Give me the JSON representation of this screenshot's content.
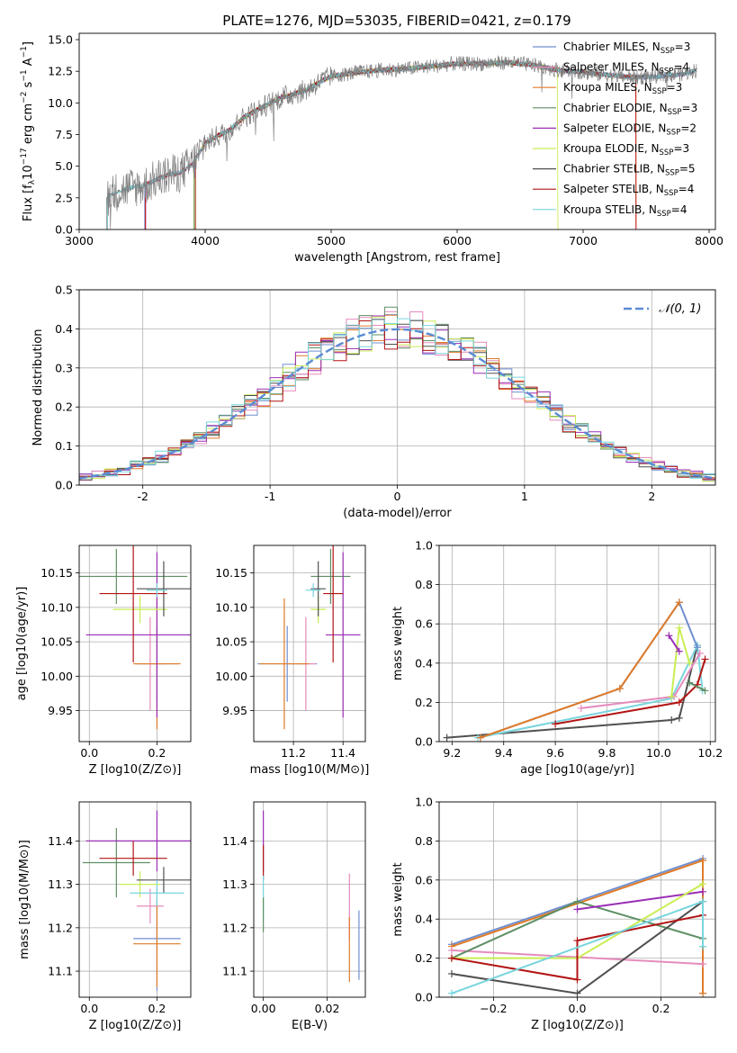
{
  "figure_title": "PLATE=1276, MJD=53035, FIBERID=0421, z=0.179",
  "series_colors": {
    "Chabrier MILES": "#6f8fd0",
    "Salpeter MILES": "#e58bbd",
    "Kroupa MILES": "#e07b28",
    "Chabrier ELODIE": "#5e8f65",
    "Salpeter ELODIE": "#9a2eb6",
    "Kroupa ELODIE": "#c9ee53",
    "Chabrier STELIB": "#505050",
    "Salpeter STELIB": "#b31414",
    "Kroupa STELIB": "#78d5de"
  },
  "models": [
    {
      "name": "Chabrier MILES",
      "nssp": "3"
    },
    {
      "name": "Salpeter MILES",
      "nssp": "4"
    },
    {
      "name": "Kroupa MILES",
      "nssp": "3"
    },
    {
      "name": "Chabrier ELODIE",
      "nssp": "3"
    },
    {
      "name": "Salpeter ELODIE",
      "nssp": "2"
    },
    {
      "name": "Kroupa ELODIE",
      "nssp": "3"
    },
    {
      "name": "Chabrier STELIB",
      "nssp": "5"
    },
    {
      "name": "Salpeter STELIB",
      "nssp": "4"
    },
    {
      "name": "Kroupa STELIB",
      "nssp": "4"
    }
  ],
  "chart_data": [
    {
      "id": "spectrum",
      "type": "line",
      "xlabel": "wavelength [Angstrom, rest frame]",
      "ylabel": "Flux [f_λ10^-17 erg cm^-2 s^-1 A^-1]",
      "xlim": [
        3000,
        8050
      ],
      "ylim": [
        0,
        15.5
      ],
      "xticks": [
        3000,
        4000,
        5000,
        6000,
        7000,
        8000
      ],
      "yticks": [
        0.0,
        2.5,
        5.0,
        7.5,
        10.0,
        12.5,
        15.0
      ],
      "grid": false,
      "legend": "top-right",
      "data_envelope": {
        "x": [
          3220,
          3300,
          3400,
          3500,
          3600,
          3700,
          3800,
          3900,
          4000,
          4100,
          4200,
          4300,
          4400,
          4500,
          4600,
          4700,
          4800,
          4900,
          5000,
          5200,
          5400,
          5600,
          5800,
          6000,
          6200,
          6400,
          6600,
          6800,
          7000,
          7200,
          7400,
          7600,
          7800,
          7900
        ],
        "y": [
          2.6,
          3.0,
          3.3,
          3.4,
          3.9,
          4.3,
          4.5,
          5.2,
          6.8,
          7.4,
          7.9,
          8.8,
          9.4,
          9.9,
          10.4,
          10.7,
          11.0,
          11.6,
          12.1,
          12.4,
          12.6,
          12.7,
          12.9,
          13.1,
          13.1,
          13.2,
          13.0,
          12.6,
          12.4,
          12.2,
          12.0,
          12.1,
          12.3,
          12.6
        ]
      },
      "model_start_wavelengths": {
        "Chabrier MILES": 3520,
        "Salpeter MILES": 3530,
        "Kroupa MILES": 3925,
        "Chabrier ELODIE": 3910,
        "Salpeter ELODIE": 3920,
        "Kroupa ELODIE": 3915,
        "Chabrier STELIB": 3220,
        "Salpeter STELIB": 3525,
        "Kroupa STELIB": 3225
      },
      "model_end_wavelengths": {
        "Kroupa ELODIE": 6800,
        "Kroupa MILES": 7420,
        "Salpeter STELIB": 7420
      }
    },
    {
      "id": "residuals",
      "type": "line",
      "xlabel": "(data-model)/error",
      "ylabel": "Normed distribution",
      "xlim": [
        -2.5,
        2.5
      ],
      "ylim": [
        0,
        0.5
      ],
      "xticks": [
        -2,
        -1,
        0,
        1,
        2
      ],
      "yticks": [
        0.0,
        0.1,
        0.2,
        0.3,
        0.4,
        0.5
      ],
      "grid": true,
      "legend": "top-right",
      "reference_label": "𝒩(0, 1)",
      "reference_color": "#5b8bd4"
    },
    {
      "id": "age-vs-Z",
      "type": "scatter",
      "xlabel": "Z [log10(Z/Z⊙)]",
      "ylabel": "age  [log10(age/yr)]",
      "xlim": [
        -0.03,
        0.3
      ],
      "ylim": [
        9.905,
        10.19
      ],
      "xticks": [
        0.0,
        0.2
      ],
      "xticklabels": [
        "0.0",
        "0.2"
      ],
      "yticks": [
        9.95,
        10.0,
        10.05,
        10.1,
        10.15
      ],
      "yticklabels": [
        "9.95",
        "10.00",
        "10.05",
        "10.10",
        "10.15"
      ],
      "grid": true,
      "points": [
        {
          "series": "Chabrier MILES",
          "x": 0.2,
          "y": 10.018,
          "xerr": 0.06,
          "yerr": 0.055
        },
        {
          "series": "Salpeter MILES",
          "x": 0.18,
          "y": 10.018,
          "xerr": 0.04,
          "yerr": 0.068
        },
        {
          "series": "Kroupa MILES",
          "x": 0.2,
          "y": 10.018,
          "xerr": 0.07,
          "yerr": 0.095
        },
        {
          "series": "Chabrier ELODIE",
          "x": 0.08,
          "y": 10.145,
          "xerr": 0.21,
          "yerr": 0.04
        },
        {
          "series": "Salpeter ELODIE",
          "x": 0.2,
          "y": 10.06,
          "xerr": 0.21,
          "yerr": 0.12
        },
        {
          "series": "Kroupa ELODIE",
          "x": 0.15,
          "y": 10.097,
          "xerr": 0.08,
          "yerr": 0.02
        },
        {
          "series": "Chabrier STELIB",
          "x": 0.22,
          "y": 10.127,
          "xerr": 0.08,
          "yerr": 0.04
        },
        {
          "series": "Salpeter STELIB",
          "x": 0.13,
          "y": 10.12,
          "xerr": 0.1,
          "yerr": 0.1
        },
        {
          "series": "Kroupa STELIB",
          "x": 0.2,
          "y": 10.125,
          "xerr": 0.03,
          "yerr": 0.01
        }
      ]
    },
    {
      "id": "age-vs-mass",
      "type": "scatter",
      "xlabel": "mass [log10(M/M⊙)]",
      "ylabel": "",
      "xlim": [
        11.04,
        11.49
      ],
      "ylim": [
        9.905,
        10.19
      ],
      "xticks": [
        11.2,
        11.4
      ],
      "xticklabels": [
        "11.2",
        "11.4"
      ],
      "yticks": [
        9.95,
        10.0,
        10.05,
        10.1,
        10.15
      ],
      "yticklabels": [
        "9.95",
        "10.00",
        "10.05",
        "10.10",
        "10.15"
      ],
      "grid": true,
      "points": [
        {
          "series": "Chabrier MILES",
          "x": 11.175,
          "y": 10.018,
          "xerr": 0.12,
          "yerr": 0.055
        },
        {
          "series": "Salpeter MILES",
          "x": 11.25,
          "y": 10.018,
          "xerr": 0.04,
          "yerr": 0.068
        },
        {
          "series": "Kroupa MILES",
          "x": 11.163,
          "y": 10.018,
          "xerr": 0.1,
          "yerr": 0.095
        },
        {
          "series": "Chabrier ELODIE",
          "x": 11.35,
          "y": 10.145,
          "xerr": 0.08,
          "yerr": 0.04
        },
        {
          "series": "Salpeter ELODIE",
          "x": 11.4,
          "y": 10.06,
          "xerr": 0.07,
          "yerr": 0.12
        },
        {
          "series": "Kroupa ELODIE",
          "x": 11.3,
          "y": 10.097,
          "xerr": 0.03,
          "yerr": 0.02
        },
        {
          "series": "Chabrier STELIB",
          "x": 11.3,
          "y": 10.127,
          "xerr": 0.03,
          "yerr": 0.04
        },
        {
          "series": "Salpeter STELIB",
          "x": 11.36,
          "y": 10.12,
          "xerr": 0.04,
          "yerr": 0.1
        },
        {
          "series": "Kroupa STELIB",
          "x": 11.28,
          "y": 10.125,
          "xerr": 0.03,
          "yerr": 0.01
        }
      ]
    },
    {
      "id": "massweight-vs-age",
      "type": "line",
      "xlabel": "age  [log10(age/yr)]",
      "ylabel": "mass weight",
      "xlim": [
        9.15,
        10.22
      ],
      "ylim": [
        0,
        1.0
      ],
      "xticks": [
        9.2,
        9.4,
        9.6,
        9.8,
        10.0,
        10.2
      ],
      "xticklabels": [
        "9.2",
        "9.4",
        "9.6",
        "9.8",
        "10.0",
        "10.2"
      ],
      "yticks": [
        0.0,
        0.2,
        0.4,
        0.6,
        0.8,
        1.0
      ],
      "yticklabels": [
        "0.0",
        "0.2",
        "0.4",
        "0.6",
        "0.8",
        "1.0"
      ],
      "grid": true,
      "series": [
        {
          "name": "Chabrier STELIB",
          "x": [
            9.18,
            10.05,
            10.08,
            10.15
          ],
          "y": [
            0.02,
            0.11,
            0.12,
            0.49
          ]
        },
        {
          "name": "Kroupa STELIB",
          "x": [
            9.3,
            10.05,
            10.15,
            10.17
          ],
          "y": [
            0.02,
            0.22,
            0.49,
            0.26
          ]
        },
        {
          "name": "Salpeter STELIB",
          "x": [
            9.6,
            10.08,
            10.15,
            10.18
          ],
          "y": [
            0.09,
            0.2,
            0.29,
            0.42
          ]
        },
        {
          "name": "Salpeter MILES",
          "x": [
            9.7,
            10.06,
            10.16
          ],
          "y": [
            0.17,
            0.23,
            0.45
          ]
        },
        {
          "name": "Kroupa ELODIE",
          "x": [
            10.05,
            10.08,
            10.12
          ],
          "y": [
            0.23,
            0.58,
            0.4
          ]
        },
        {
          "name": "Chabrier ELODIE",
          "x": [
            10.12,
            10.18
          ],
          "y": [
            0.3,
            0.26
          ]
        },
        {
          "name": "Salpeter ELODIE",
          "x": [
            10.04,
            10.08
          ],
          "y": [
            0.54,
            0.46
          ]
        },
        {
          "name": "Chabrier MILES",
          "x": [
            9.31,
            9.85,
            10.08,
            10.15
          ],
          "y": [
            0.02,
            0.27,
            0.71,
            0.48
          ]
        },
        {
          "name": "Kroupa MILES",
          "x": [
            9.31,
            9.85,
            10.08
          ],
          "y": [
            0.02,
            0.27,
            0.71
          ]
        }
      ]
    },
    {
      "id": "mass-vs-Z",
      "type": "scatter",
      "xlabel": "Z [log10(Z/Z⊙)]",
      "ylabel": "mass [log10(M/M⊙)]",
      "xlim": [
        -0.03,
        0.3
      ],
      "ylim": [
        11.04,
        11.49
      ],
      "xticks": [
        0.0,
        0.2
      ],
      "xticklabels": [
        "0.0",
        "0.2"
      ],
      "yticks": [
        11.1,
        11.2,
        11.3,
        11.4
      ],
      "yticklabels": [
        "11.1",
        "11.2",
        "11.3",
        "11.4"
      ],
      "grid": true,
      "points": [
        {
          "series": "Chabrier MILES",
          "x": 0.2,
          "y": 11.175,
          "xerr": 0.07,
          "yerr": 0.12
        },
        {
          "series": "Salpeter MILES",
          "x": 0.18,
          "y": 11.25,
          "xerr": 0.04,
          "yerr": 0.04
        },
        {
          "series": "Kroupa MILES",
          "x": 0.2,
          "y": 11.163,
          "xerr": 0.07,
          "yerr": 0.1
        },
        {
          "series": "Chabrier ELODIE",
          "x": 0.08,
          "y": 11.35,
          "xerr": 0.1,
          "yerr": 0.08
        },
        {
          "series": "Salpeter ELODIE",
          "x": 0.2,
          "y": 11.4,
          "xerr": 0.21,
          "yerr": 0.07
        },
        {
          "series": "Kroupa ELODIE",
          "x": 0.15,
          "y": 11.3,
          "xerr": 0.06,
          "yerr": 0.03
        },
        {
          "series": "Chabrier STELIB",
          "x": 0.22,
          "y": 11.31,
          "xerr": 0.08,
          "yerr": 0.03
        },
        {
          "series": "Salpeter STELIB",
          "x": 0.13,
          "y": 11.36,
          "xerr": 0.1,
          "yerr": 0.04
        },
        {
          "series": "Kroupa STELIB",
          "x": 0.2,
          "y": 11.28,
          "xerr": 0.08,
          "yerr": 0.03
        }
      ]
    },
    {
      "id": "mass-vs-ebv",
      "type": "scatter",
      "xlabel": "E(B-V)",
      "ylabel": "",
      "xlim": [
        -0.003,
        0.032
      ],
      "ylim": [
        11.04,
        11.49
      ],
      "xticks": [
        0.0,
        0.02
      ],
      "xticklabels": [
        "0.00",
        "0.02"
      ],
      "yticks": [
        11.1,
        11.2,
        11.3,
        11.4
      ],
      "yticklabels": [
        "11.1",
        "11.2",
        "11.3",
        "11.4"
      ],
      "grid": true,
      "points": [
        {
          "series": "Chabrier MILES",
          "x": 0.03,
          "y": 11.16,
          "xerr": 0,
          "yerr": 0.08
        },
        {
          "series": "Salpeter MILES",
          "x": 0.027,
          "y": 11.25,
          "xerr": 0,
          "yerr": 0.075
        },
        {
          "series": "Kroupa MILES",
          "x": 0.027,
          "y": 11.15,
          "xerr": 0,
          "yerr": 0.075
        },
        {
          "series": "Salpeter ELODIE",
          "x": 0.0,
          "y": 11.4,
          "xerr": 0,
          "yerr": 0.07
        },
        {
          "series": "Salpeter STELIB",
          "x": 0.0,
          "y": 11.35,
          "xerr": 0,
          "yerr": 0.04
        },
        {
          "series": "Kroupa STELIB",
          "x": 0.0,
          "y": 11.27,
          "xerr": 0,
          "yerr": 0.05
        },
        {
          "series": "Chabrier ELODIE",
          "x": 0.0,
          "y": 11.23,
          "xerr": 0,
          "yerr": 0.04
        }
      ]
    },
    {
      "id": "massweight-vs-Z",
      "type": "line",
      "xlabel": "Z [log10(Z/Z⊙)]",
      "ylabel": "mass weight",
      "xlim": [
        -0.33,
        0.33
      ],
      "ylim": [
        0,
        1.0
      ],
      "xticks": [
        -0.2,
        0.0,
        0.2
      ],
      "xticklabels": [
        "−0.2",
        "0.0",
        "0.2"
      ],
      "yticks": [
        0.0,
        0.2,
        0.4,
        0.6,
        0.8,
        1.0
      ],
      "yticklabels": [
        "0.0",
        "0.2",
        "0.4",
        "0.6",
        "0.8",
        "1.0"
      ],
      "grid": true,
      "series": [
        {
          "name": "Chabrier MILES",
          "x": [
            -0.3,
            0.3,
            0.3
          ],
          "y": [
            0.27,
            0.71,
            0.02
          ]
        },
        {
          "name": "Kroupa MILES",
          "x": [
            -0.3,
            0.3,
            0.3
          ],
          "y": [
            0.26,
            0.7,
            0.02
          ]
        },
        {
          "name": "Salpeter MILES",
          "x": [
            -0.3,
            0.3
          ],
          "y": [
            0.24,
            0.17
          ]
        },
        {
          "name": "Chabrier ELODIE",
          "x": [
            -0.3,
            0.0,
            0.3
          ],
          "y": [
            0.2,
            0.49,
            0.3
          ]
        },
        {
          "name": "Salpeter ELODIE",
          "x": [
            0.0,
            0.3
          ],
          "y": [
            0.45,
            0.54
          ]
        },
        {
          "name": "Kroupa ELODIE",
          "x": [
            -0.3,
            0.0,
            0.3
          ],
          "y": [
            0.2,
            0.2,
            0.58
          ]
        },
        {
          "name": "Chabrier STELIB",
          "x": [
            -0.3,
            0.0,
            0.3,
            0.3
          ],
          "y": [
            0.12,
            0.02,
            0.49,
            0.26
          ]
        },
        {
          "name": "Salpeter STELIB",
          "x": [
            -0.3,
            0.0,
            0.0,
            0.3
          ],
          "y": [
            0.2,
            0.09,
            0.29,
            0.42
          ]
        },
        {
          "name": "Kroupa STELIB",
          "x": [
            -0.3,
            0.3,
            0.3
          ],
          "y": [
            0.02,
            0.49,
            0.26
          ]
        }
      ]
    }
  ]
}
